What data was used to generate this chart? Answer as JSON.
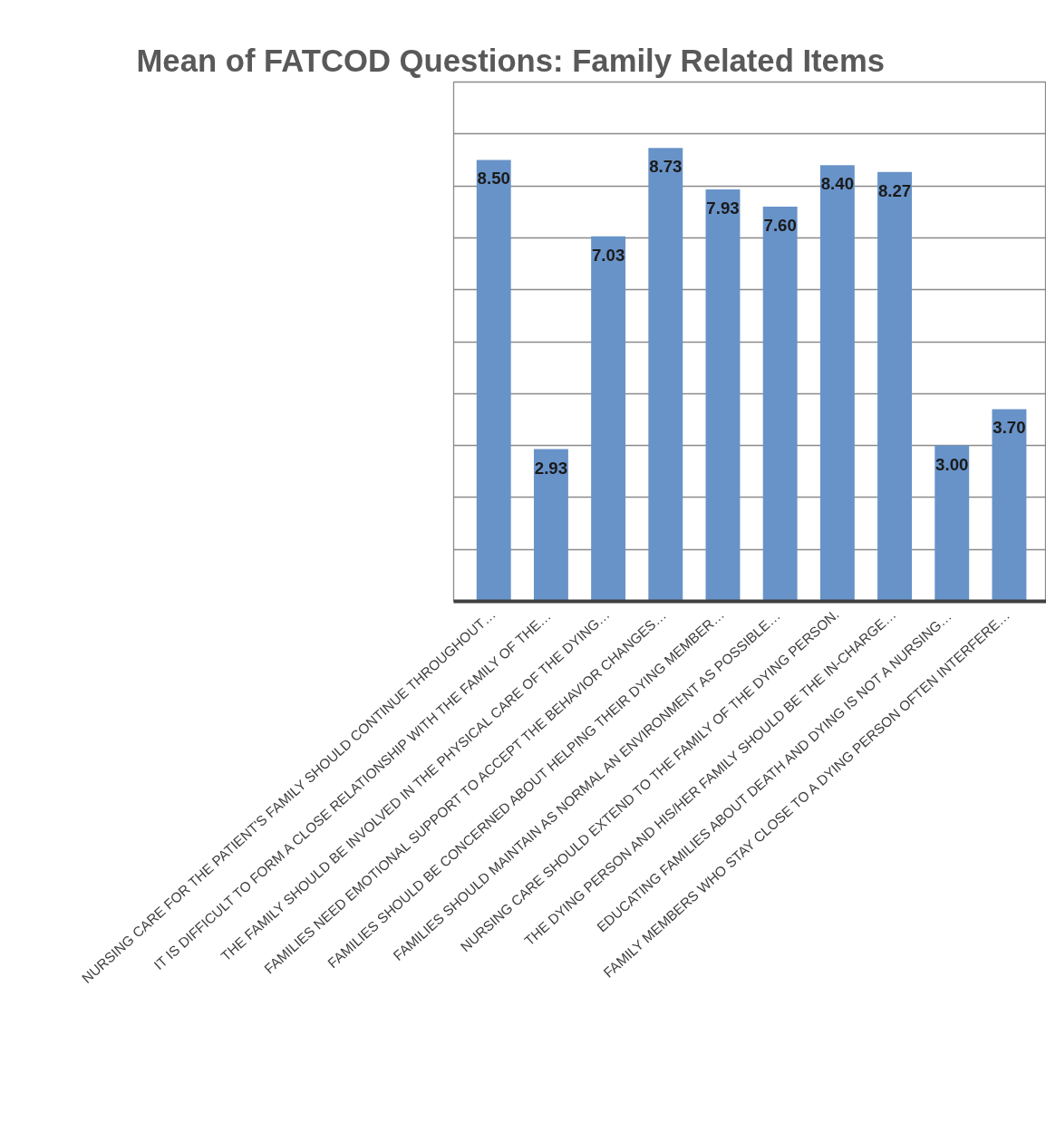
{
  "chart_data": {
    "type": "bar",
    "title": "Mean of FATCOD Questions: Family Related Items",
    "categories": [
      "NURSING CARE FOR THE PATIENT'S FAMILY SHOULD CONTINUE THROUGHOUT…",
      "IT IS DIFFICULT TO FORM A CLOSE RELATIONSHIP WITH THE FAMILY OF THE…",
      "THE FAMILY SHOULD BE INVOLVED IN THE PHYSICAL CARE OF THE DYING…",
      "FAMILIES NEED EMOTIONAL SUPPORT TO ACCEPT THE BEHAVIOR CHANGES…",
      "FAMILIES SHOULD BE CONCERNED ABOUT HELPING THEIR DYING MEMBER…",
      "FAMILIES SHOULD MAINTAIN AS NORMAL AN ENVIRONMENT AS POSSIBLE…",
      "NURSING CARE SHOULD EXTEND TO THE FAMILY OF THE DYING PERSON.",
      "THE DYING PERSON AND HIS/HER FAMILY SHOULD BE THE IN-CHARGE…",
      "EDUCATING FAMILIES ABOUT DEATH AND DYING IS NOT A NURSING…",
      "FAMILY MEMBERS WHO STAY CLOSE TO A DYING PERSON OFTEN INTERFERE…"
    ],
    "values": [
      8.5,
      2.93,
      7.03,
      8.73,
      7.93,
      7.6,
      8.4,
      8.27,
      3.0,
      3.7
    ],
    "value_labels": [
      "8.50",
      "2.93",
      "7.03",
      "8.73",
      "7.93",
      "7.60",
      "8.40",
      "8.27",
      "3.00",
      "3.70"
    ],
    "color": "#6893c8",
    "ylim": [
      0,
      10
    ],
    "yticks": [
      {
        "value": 0,
        "label": null
      },
      {
        "value": 1,
        "label": null
      },
      {
        "value": 2,
        "label": null
      },
      {
        "value": 3,
        "label": null
      },
      {
        "value": 4,
        "label": null
      },
      {
        "value": 5,
        "label": null
      },
      {
        "value": 6,
        "label": null
      },
      {
        "value": 7,
        "label": null
      },
      {
        "value": 8,
        "label": null
      },
      {
        "value": 9,
        "label": null
      }
    ],
    "tick_labels": "x",
    "grid": "y"
  }
}
